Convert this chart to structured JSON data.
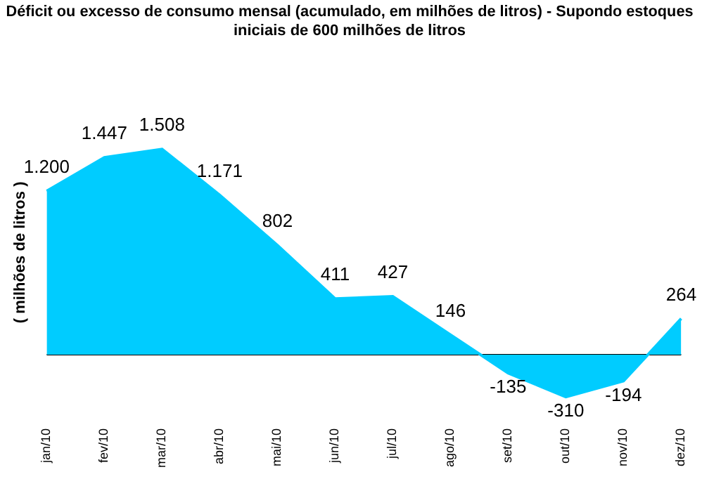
{
  "chart_data": {
    "type": "area",
    "title": "Déficit ou excesso de consumo mensal (acumulado, em milhões de litros) - Supondo estoques\niniciais de 600 milhões de litros",
    "ylabel": "( milhões de litros )",
    "categories": [
      "jan/10",
      "fev/10",
      "mar/10",
      "abr/10",
      "mai/10",
      "jun/10",
      "jul/10",
      "ago/10",
      "set/10",
      "out/10",
      "nov/10",
      "dez/10"
    ],
    "series": [
      {
        "color": "#00ccff",
        "values": [
          1200,
          1447,
          1508,
          1171,
          802,
          411,
          427,
          146,
          -135,
          -310,
          -194,
          264
        ],
        "value_labels": [
          "1.200",
          "1.447",
          "1.508",
          "1.171",
          "802",
          "411",
          "427",
          "146",
          "-135",
          "-310",
          "-194",
          "264"
        ]
      }
    ],
    "grid": false,
    "legend": false
  }
}
